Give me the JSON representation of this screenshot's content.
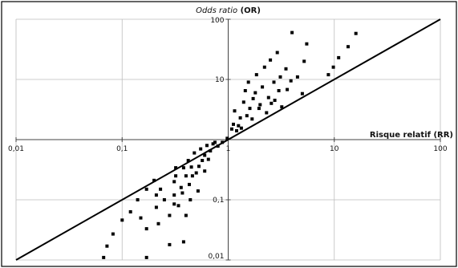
{
  "chart_data": {
    "type": "scatter",
    "xlabel": "Risque relatif (RR)",
    "ylabel": {
      "italic": "Odds ratio",
      "rest": " (OR)"
    },
    "x_scale": "log",
    "y_scale": "log",
    "xlim": [
      0.01,
      100
    ],
    "ylim": [
      0.01,
      100
    ],
    "x_ticks": [
      "0,01",
      "0,1",
      "1",
      "10",
      "100"
    ],
    "y_ticks": [
      "100",
      "10",
      "0,1",
      "0,01"
    ],
    "grid": true,
    "reference_line": {
      "from": [
        0.01,
        0.01
      ],
      "to": [
        100,
        100
      ]
    },
    "series": [
      {
        "points": [
          [
            0.067,
            0.011
          ],
          [
            0.072,
            0.017
          ],
          [
            0.082,
            0.027
          ],
          [
            0.1,
            0.046
          ],
          [
            0.12,
            0.063
          ],
          [
            0.14,
            0.1
          ],
          [
            0.15,
            0.05
          ],
          [
            0.17,
            0.033
          ],
          [
            0.17,
            0.011
          ],
          [
            0.17,
            0.15
          ],
          [
            0.2,
            0.21
          ],
          [
            0.21,
            0.075
          ],
          [
            0.21,
            0.12
          ],
          [
            0.22,
            0.04
          ],
          [
            0.23,
            0.15
          ],
          [
            0.25,
            0.1
          ],
          [
            0.28,
            0.018
          ],
          [
            0.28,
            0.055
          ],
          [
            0.31,
            0.085
          ],
          [
            0.31,
            0.12
          ],
          [
            0.31,
            0.2
          ],
          [
            0.32,
            0.25
          ],
          [
            0.32,
            0.34
          ],
          [
            0.34,
            0.08
          ],
          [
            0.36,
            0.16
          ],
          [
            0.37,
            0.13
          ],
          [
            0.38,
            0.02
          ],
          [
            0.38,
            0.34
          ],
          [
            0.4,
            0.25
          ],
          [
            0.4,
            0.055
          ],
          [
            0.42,
            0.45
          ],
          [
            0.43,
            0.18
          ],
          [
            0.44,
            0.1
          ],
          [
            0.45,
            0.35
          ],
          [
            0.46,
            0.25
          ],
          [
            0.48,
            0.6
          ],
          [
            0.5,
            0.28
          ],
          [
            0.52,
            0.14
          ],
          [
            0.53,
            0.36
          ],
          [
            0.55,
            0.7
          ],
          [
            0.57,
            0.45
          ],
          [
            0.6,
            0.55
          ],
          [
            0.6,
            0.3
          ],
          [
            0.63,
            0.8
          ],
          [
            0.65,
            0.47
          ],
          [
            0.68,
            0.65
          ],
          [
            0.72,
            0.85
          ],
          [
            0.75,
            0.9
          ],
          [
            0.8,
            0.78
          ],
          [
            0.88,
            0.9
          ],
          [
            0.98,
            1.05
          ],
          [
            1.08,
            1.5
          ],
          [
            1.12,
            1.8
          ],
          [
            1.15,
            3.0
          ],
          [
            1.2,
            1.4
          ],
          [
            1.25,
            1.7
          ],
          [
            1.3,
            2.3
          ],
          [
            1.33,
            1.55
          ],
          [
            1.4,
            4.2
          ],
          [
            1.45,
            6.5
          ],
          [
            1.5,
            2.5
          ],
          [
            1.55,
            9.0
          ],
          [
            1.6,
            3.3
          ],
          [
            1.68,
            2.2
          ],
          [
            1.72,
            4.8
          ],
          [
            1.8,
            6.0
          ],
          [
            1.85,
            12.0
          ],
          [
            1.95,
            3.3
          ],
          [
            2.0,
            3.8
          ],
          [
            2.1,
            7.5
          ],
          [
            2.2,
            16.0
          ],
          [
            2.3,
            2.8
          ],
          [
            2.4,
            5.0
          ],
          [
            2.5,
            21.0
          ],
          [
            2.55,
            4.0
          ],
          [
            2.7,
            9.0
          ],
          [
            2.75,
            4.5
          ],
          [
            2.9,
            28.0
          ],
          [
            3.0,
            6.5
          ],
          [
            3.1,
            11.0
          ],
          [
            3.2,
            3.5
          ],
          [
            3.5,
            15.0
          ],
          [
            3.6,
            6.8
          ],
          [
            3.9,
            9.5
          ],
          [
            4.0,
            60.0
          ],
          [
            4.5,
            11.0
          ],
          [
            5.0,
            5.8
          ],
          [
            5.2,
            20.0
          ],
          [
            5.5,
            39.0
          ],
          [
            8.8,
            12.0
          ],
          [
            9.8,
            16.0
          ],
          [
            11.0,
            23.0
          ],
          [
            13.5,
            35.0
          ],
          [
            16.0,
            58.0
          ]
        ]
      }
    ]
  }
}
